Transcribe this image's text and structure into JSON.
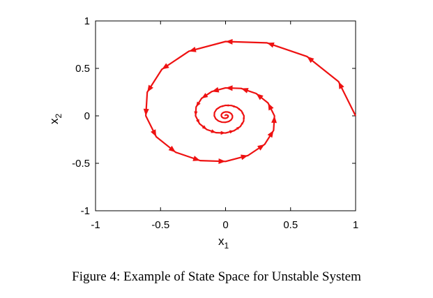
{
  "caption": "Figure 4: Example of State Space for Unstable System",
  "chart_data": {
    "type": "line",
    "xlabel": {
      "base": "x",
      "sub": "1"
    },
    "ylabel": {
      "base": "x",
      "sub": "2"
    },
    "xlim": [
      -1,
      1
    ],
    "ylim": [
      -1,
      1
    ],
    "xticks": [
      -1,
      -0.5,
      0,
      0.5,
      1
    ],
    "xtick_labels": [
      "-1",
      "-0.5",
      "0",
      "0.5",
      "1"
    ],
    "yticks": [
      1,
      0.5,
      0,
      -0.5,
      -1
    ],
    "ytick_labels": [
      "1",
      "0.5",
      "0",
      "-0.5",
      "-1"
    ],
    "grid": false,
    "series": [
      {
        "color": "#ee1111",
        "markers": "arrowheads",
        "spiral": {
          "center": [
            0.0,
            0.0
          ],
          "start": [
            1.0,
            0.0
          ],
          "start_radius": 1.0,
          "turns": 4,
          "steps_per_turn": 16,
          "end_radius": 0.02,
          "direction": "counterclockwise"
        }
      }
    ]
  }
}
